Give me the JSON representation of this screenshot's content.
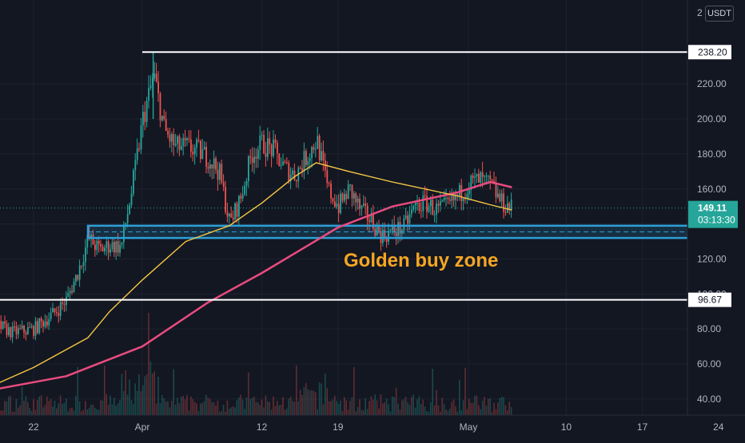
{
  "currency_badge": "USDT",
  "top_partial_label": "2",
  "chart_data": {
    "type": "candlestick",
    "title": "",
    "xlabel": "",
    "ylabel": "",
    "ylim": [
      33,
      252
    ],
    "x_tick_labels": [
      "22",
      "Apr",
      "12",
      "19",
      "May",
      "10",
      "17",
      "24"
    ],
    "x_tick_dates": [
      "2021-03-22",
      "2021-04-01",
      "2021-04-12",
      "2021-04-19",
      "2021-05-01",
      "2021-05-10",
      "2021-05-17",
      "2021-05-24"
    ],
    "y_tick_values": [
      40,
      60,
      80,
      100,
      120,
      140,
      160,
      180,
      200,
      220
    ],
    "y_tick_labels": [
      "40.00",
      "60.00",
      "80.00",
      "100.00",
      "120.00",
      "140.00",
      "160.00",
      "180.00",
      "200.00",
      "220.00"
    ],
    "y_tick_labels_visible": [
      "40.00",
      "60.00",
      "80.00",
      "120.00",
      "140.00",
      "160.00",
      "180.00",
      "200.00",
      "220.00"
    ],
    "grid": true,
    "colors": {
      "up": "#26a69a",
      "down": "#ef5350",
      "ma_fast": "#f7c744",
      "ma_slow": "#e94b7f",
      "zone": "#2d9fd6",
      "annotation": "#f5a623",
      "background": "#131722"
    },
    "horizontal_lines": [
      {
        "name": "resistance",
        "value": 238.2,
        "label": "238.20",
        "start": "2021-04-01"
      },
      {
        "name": "support",
        "value": 96.67,
        "label": "96.67",
        "start": "2021-03-14"
      }
    ],
    "zone": {
      "low": 132,
      "high": 139,
      "start": "2021-03-27",
      "end": "2021-05-24",
      "label": "Golden buy zone"
    },
    "last_price": {
      "value": 149.11,
      "label": "149.11",
      "countdown": "03:13:30"
    },
    "candle_path": [
      [
        "2021-03-14",
        86
      ],
      [
        "2021-03-18",
        84
      ],
      [
        "2021-03-20",
        78
      ],
      [
        "2021-03-22",
        80
      ],
      [
        "2021-03-24",
        90
      ],
      [
        "2021-03-25",
        97
      ],
      [
        "2021-03-26",
        112
      ],
      [
        "2021-03-27",
        132
      ],
      [
        "2021-03-28",
        125
      ],
      [
        "2021-03-29",
        128
      ],
      [
        "2021-03-30",
        127
      ],
      [
        "2021-03-31",
        160
      ],
      [
        "2021-04-01",
        200
      ],
      [
        "2021-04-02",
        225
      ],
      [
        "2021-04-03",
        193
      ],
      [
        "2021-04-04",
        184
      ],
      [
        "2021-04-05",
        184
      ],
      [
        "2021-04-06",
        182
      ],
      [
        "2021-04-07",
        178
      ],
      [
        "2021-04-08",
        170
      ],
      [
        "2021-04-09",
        140
      ],
      [
        "2021-04-10",
        155
      ],
      [
        "2021-04-11",
        180
      ],
      [
        "2021-04-12",
        186
      ],
      [
        "2021-04-13",
        182
      ],
      [
        "2021-04-14",
        172
      ],
      [
        "2021-04-15",
        168
      ],
      [
        "2021-04-16",
        178
      ],
      [
        "2021-04-17",
        188
      ],
      [
        "2021-04-18",
        160
      ],
      [
        "2021-04-19",
        150
      ],
      [
        "2021-04-20",
        160
      ],
      [
        "2021-04-21",
        148
      ],
      [
        "2021-04-22",
        142
      ],
      [
        "2021-04-23",
        133
      ],
      [
        "2021-04-24",
        136
      ],
      [
        "2021-04-25",
        138
      ],
      [
        "2021-04-26",
        150
      ],
      [
        "2021-04-27",
        152
      ],
      [
        "2021-04-28",
        148
      ],
      [
        "2021-04-29",
        150
      ],
      [
        "2021-04-30",
        156
      ],
      [
        "2021-05-01",
        163
      ],
      [
        "2021-05-02",
        165
      ],
      [
        "2021-05-03",
        162
      ],
      [
        "2021-05-04",
        152
      ],
      [
        "2021-05-05",
        149
      ]
    ],
    "ma_fast": [
      [
        "2021-03-14",
        36
      ],
      [
        "2021-03-22",
        58
      ],
      [
        "2021-03-27",
        75
      ],
      [
        "2021-03-29",
        90
      ],
      [
        "2021-04-01",
        108
      ],
      [
        "2021-04-05",
        130
      ],
      [
        "2021-04-09",
        139
      ],
      [
        "2021-04-12",
        152
      ],
      [
        "2021-04-15",
        167
      ],
      [
        "2021-04-17",
        175
      ],
      [
        "2021-04-20",
        170
      ],
      [
        "2021-04-24",
        164
      ],
      [
        "2021-04-30",
        156
      ],
      [
        "2021-05-03",
        151
      ],
      [
        "2021-05-05",
        148
      ]
    ],
    "ma_slow": [
      [
        "2021-03-14",
        40
      ],
      [
        "2021-03-18",
        45
      ],
      [
        "2021-03-25",
        53
      ],
      [
        "2021-04-01",
        70
      ],
      [
        "2021-04-07",
        95
      ],
      [
        "2021-04-12",
        112
      ],
      [
        "2021-04-19",
        138
      ],
      [
        "2021-04-24",
        150
      ],
      [
        "2021-04-30",
        158
      ],
      [
        "2021-05-03",
        164
      ],
      [
        "2021-05-05",
        161
      ]
    ]
  }
}
